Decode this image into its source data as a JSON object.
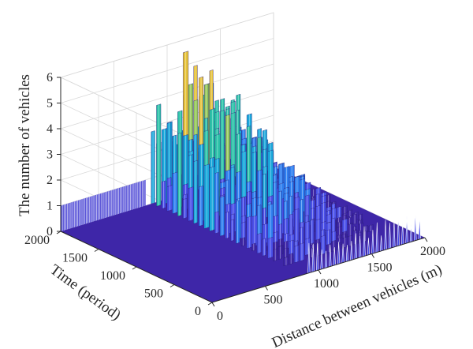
{
  "chart_data": {
    "type": "surface",
    "title": "",
    "xlabel": "Distance between vehicles (m)",
    "ylabel": "Time (period)",
    "zlabel": "The number of vehicles",
    "xlim": [
      0,
      2000
    ],
    "ylim": [
      0,
      2000
    ],
    "zlim": [
      0,
      6
    ],
    "xticks": [
      "0",
      "500",
      "1000",
      "1500",
      "2000"
    ],
    "yticks": [
      "0",
      "500",
      "1000",
      "1500",
      "2000"
    ],
    "zticks": [
      "0",
      "1",
      "2",
      "3",
      "4",
      "5",
      "6"
    ],
    "grid": true,
    "colormap": [
      "#3e26a8",
      "#4a50e8",
      "#2f80f0",
      "#1aa8db",
      "#2cc2a8",
      "#97c95a",
      "#e6c23a",
      "#f9fb15"
    ],
    "baseline": {
      "description_x_range": [
        0,
        800
      ],
      "value": 1,
      "time_range": [
        0,
        2000
      ]
    },
    "profile_x": [
      850,
      900,
      950,
      1000,
      1050,
      1100,
      1150,
      1200,
      1250,
      1300,
      1350,
      1400,
      1450,
      1500,
      1550,
      1600,
      1650,
      1700,
      1750,
      1800
    ],
    "profile_max": [
      4.2,
      4.5,
      5.0,
      4.8,
      5.2,
      6.0,
      5.4,
      5.1,
      5.7,
      5.2,
      4.4,
      4.0,
      4.6,
      3.8,
      3.6,
      2.8,
      2.6,
      1.9,
      1.4,
      1.0
    ]
  }
}
